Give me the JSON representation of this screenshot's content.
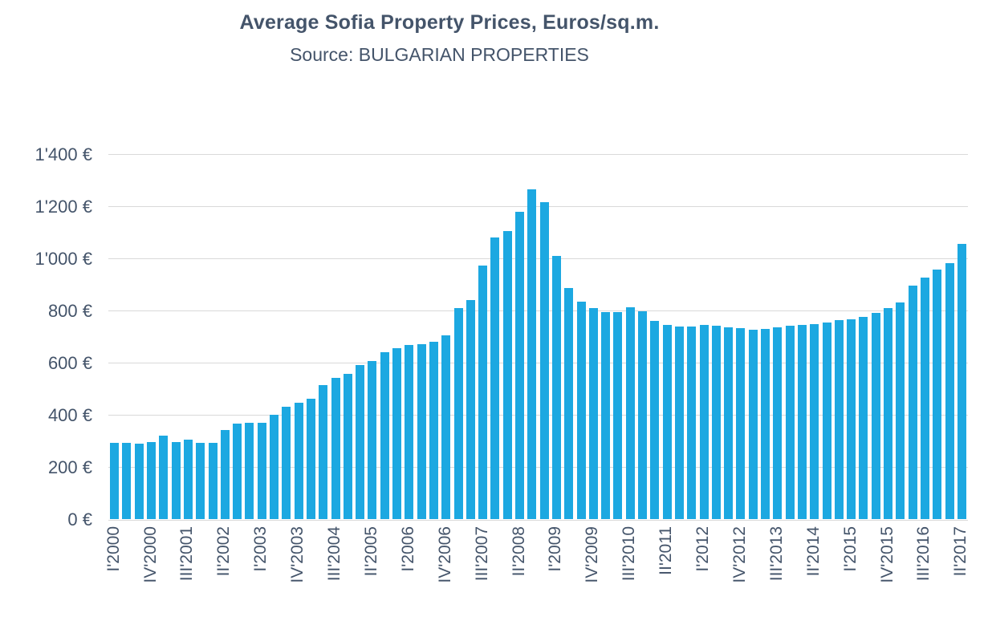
{
  "header": {
    "title": "Average Sofia Property Prices, Euros/sq.m.",
    "subtitle": "Source: BULGARIAN PROPERTIES"
  },
  "colors": {
    "bar": "#1CA8E1",
    "gridline": "#D9D9D9",
    "axis_line": "#D9D9D9",
    "text": "#44546A"
  },
  "chart_data": {
    "type": "bar",
    "title": "Average Sofia Property Prices, Euros/sq.m.",
    "subtitle": "Source: BULGARIAN PROPERTIES",
    "xlabel": "",
    "ylabel": "",
    "unit": "Euros/sq.m.",
    "grid": true,
    "legend_position": "none",
    "ylim": [
      0,
      1400
    ],
    "ytick_step": 200,
    "ytick_labels": [
      "0 €",
      "200 €",
      "400 €",
      "600 €",
      "800 €",
      "1'000 €",
      "1'200 €",
      "1'400 €"
    ],
    "xtick_every": 3,
    "xtick_labels": [
      "I'2000",
      "IV'2000",
      "III'2001",
      "II'2002",
      "I'2003",
      "IV'2003",
      "III'2004",
      "II'2005",
      "I'2006",
      "IV'2006",
      "III'2007",
      "II'2008",
      "I'2009",
      "IV'2009",
      "III'2010",
      "II'2011",
      "I'2012",
      "IV'2012",
      "III'2013",
      "II'2014",
      "I'2015",
      "IV'2015",
      "III'2016",
      "II'2017"
    ],
    "categories": [
      "I'2000",
      "II'2000",
      "III'2000",
      "IV'2000",
      "I'2001",
      "II'2001",
      "III'2001",
      "IV'2001",
      "I'2002",
      "II'2002",
      "III'2002",
      "IV'2002",
      "I'2003",
      "II'2003",
      "III'2003",
      "IV'2003",
      "I'2004",
      "II'2004",
      "III'2004",
      "IV'2004",
      "I'2005",
      "II'2005",
      "III'2005",
      "IV'2005",
      "I'2006",
      "II'2006",
      "III'2006",
      "IV'2006",
      "I'2007",
      "II'2007",
      "III'2007",
      "IV'2007",
      "I'2008",
      "II'2008",
      "III'2008",
      "IV'2008",
      "I'2009",
      "II'2009",
      "III'2009",
      "IV'2009",
      "I'2010",
      "II'2010",
      "III'2010",
      "IV'2010",
      "I'2011",
      "II'2011",
      "III'2011",
      "IV'2011",
      "I'2012",
      "II'2012",
      "III'2012",
      "IV'2012",
      "I'2013",
      "II'2013",
      "III'2013",
      "IV'2013",
      "I'2014",
      "II'2014",
      "III'2014",
      "IV'2014",
      "I'2015",
      "II'2015",
      "III'2015",
      "IV'2015",
      "I'2016",
      "II'2016",
      "III'2016",
      "IV'2016",
      "I'2017",
      "II'2017"
    ],
    "values": [
      295,
      295,
      291,
      300,
      323,
      298,
      308,
      295,
      296,
      345,
      368,
      371,
      373,
      404,
      434,
      448,
      464,
      518,
      544,
      561,
      595,
      610,
      644,
      658,
      672,
      673,
      683,
      709,
      812,
      842,
      974,
      1082,
      1107,
      1182,
      1267,
      1218,
      1012,
      890,
      838,
      812,
      796,
      796,
      814,
      800,
      763,
      748,
      743,
      742,
      748,
      745,
      738,
      735,
      728,
      733,
      738,
      746,
      747,
      752,
      756,
      766,
      769,
      780,
      795,
      812,
      833,
      898,
      929,
      960,
      984,
      1058
    ]
  }
}
